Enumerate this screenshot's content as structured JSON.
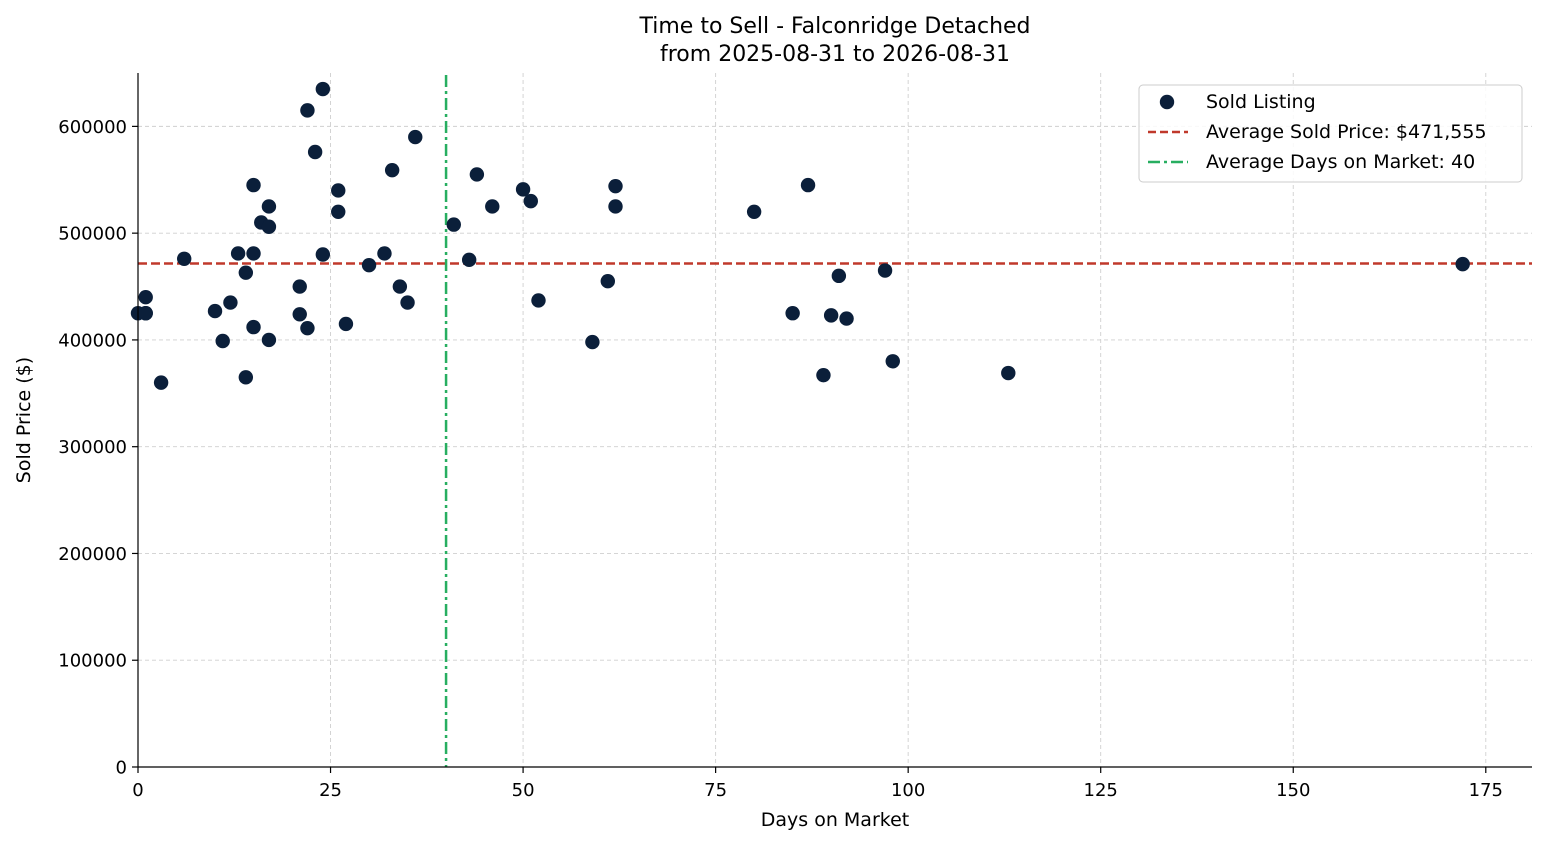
{
  "chart_data": {
    "type": "scatter",
    "title": "Time to Sell - Falconridge Detached",
    "subtitle": "from 2025-08-31 to 2026-08-31",
    "xlabel": "Days on Market",
    "ylabel": "Sold Price ($)",
    "xlim": [
      0,
      181
    ],
    "ylim": [
      0,
      650000
    ],
    "xticks": [
      0,
      25,
      50,
      75,
      100,
      125,
      150,
      175
    ],
    "yticks": [
      0,
      100000,
      200000,
      300000,
      400000,
      500000,
      600000
    ],
    "grid": true,
    "legend_position": "top-right",
    "colors": {
      "points": "#0b1f3a",
      "avg_price": "#c0392b",
      "avg_days": "#27ae60"
    },
    "series": [
      {
        "name": "Sold Listing",
        "x": [
          0,
          1,
          1,
          1,
          3,
          6,
          10,
          11,
          12,
          13,
          14,
          14,
          15,
          15,
          15,
          16,
          17,
          17,
          17,
          21,
          21,
          22,
          22,
          23,
          24,
          24,
          26,
          26,
          27,
          30,
          32,
          33,
          34,
          35,
          36,
          41,
          43,
          44,
          46,
          50,
          51,
          52,
          59,
          61,
          62,
          62,
          80,
          85,
          87,
          89,
          90,
          91,
          92,
          97,
          98,
          113,
          172
        ],
        "y": [
          425000,
          440000,
          425000,
          425000,
          360000,
          476000,
          427000,
          399000,
          435000,
          481000,
          463000,
          365000,
          545000,
          481000,
          412000,
          510000,
          525000,
          506000,
          400000,
          450000,
          424000,
          615000,
          411000,
          576000,
          635000,
          480000,
          540000,
          520000,
          415000,
          470000,
          481000,
          559000,
          450000,
          435000,
          590000,
          508000,
          475000,
          555000,
          525000,
          541000,
          530000,
          437000,
          398000,
          455000,
          544000,
          525000,
          520000,
          425000,
          545000,
          367000,
          423000,
          460000,
          420000,
          465000,
          380000,
          369000,
          471000
        ]
      }
    ],
    "reference_lines": [
      {
        "name": "Average Sold Price: $471,555",
        "orientation": "horizontal",
        "value": 471555,
        "style": "dashed"
      },
      {
        "name": "Average Days on Market: 40",
        "orientation": "vertical",
        "value": 40,
        "style": "dashdot"
      }
    ]
  }
}
